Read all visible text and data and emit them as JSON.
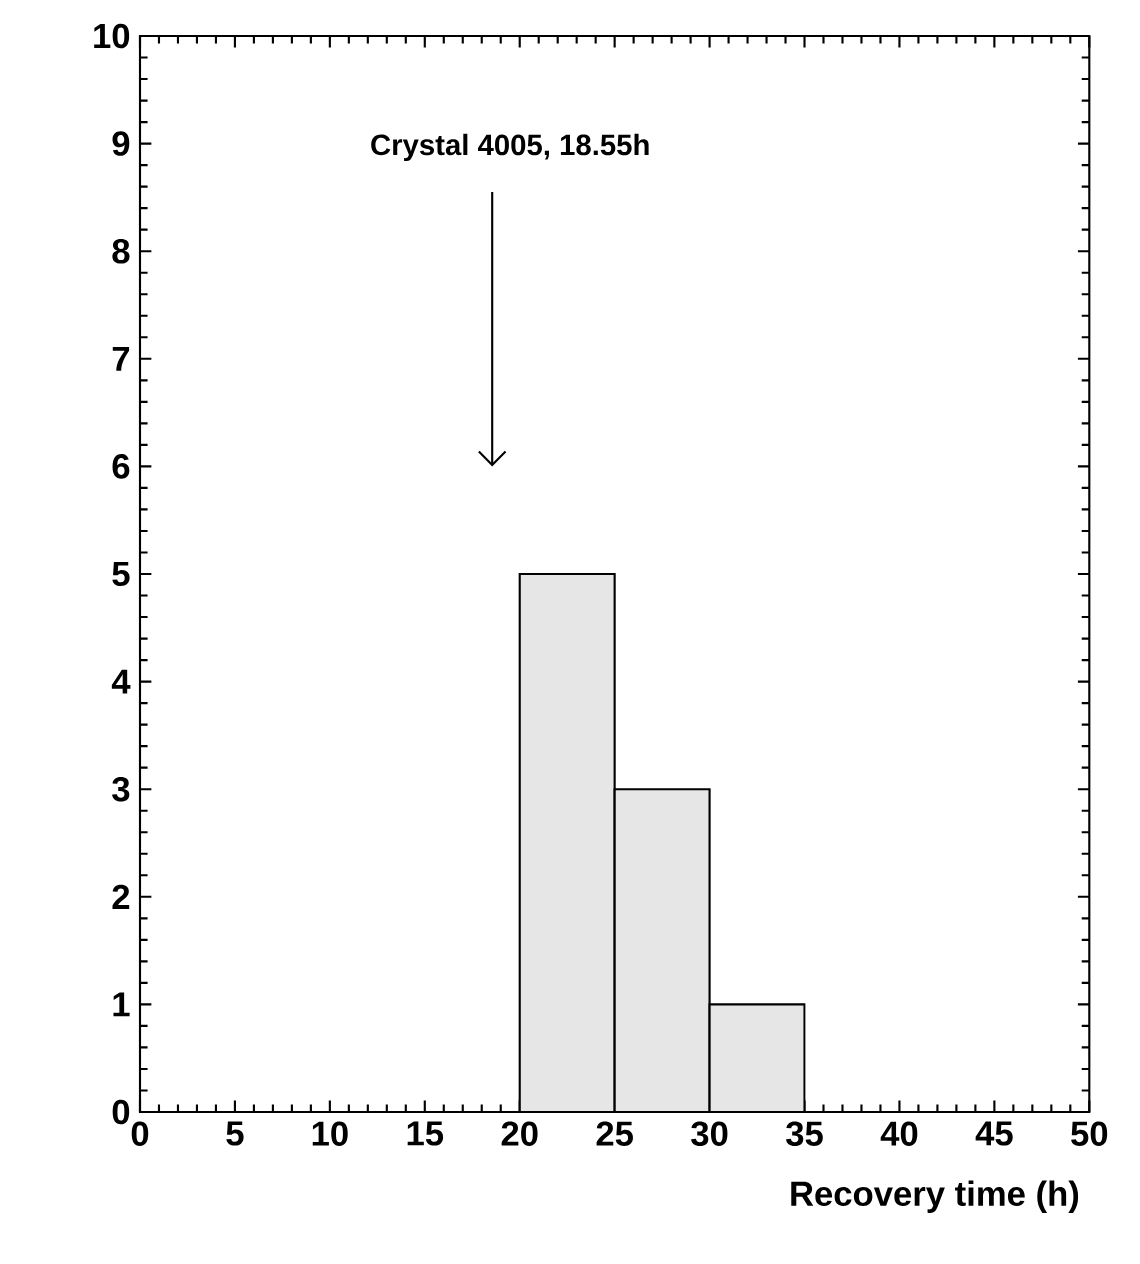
{
  "chart_data": {
    "type": "histogram",
    "bins": [
      20,
      25,
      30,
      35
    ],
    "values": [
      5,
      3,
      1
    ],
    "color": "#e6e6e6",
    "xlabel": "Recovery time (h)",
    "xlim": [
      0,
      50
    ],
    "xticks": [
      0,
      5,
      10,
      15,
      20,
      25,
      30,
      35,
      40,
      45,
      50
    ],
    "ylim": [
      0,
      10
    ],
    "yticks": [
      0,
      1,
      2,
      3,
      4,
      5,
      6,
      7,
      8,
      9,
      10
    ],
    "annotations": [
      "Crystal 4005, 18.55h"
    ]
  }
}
